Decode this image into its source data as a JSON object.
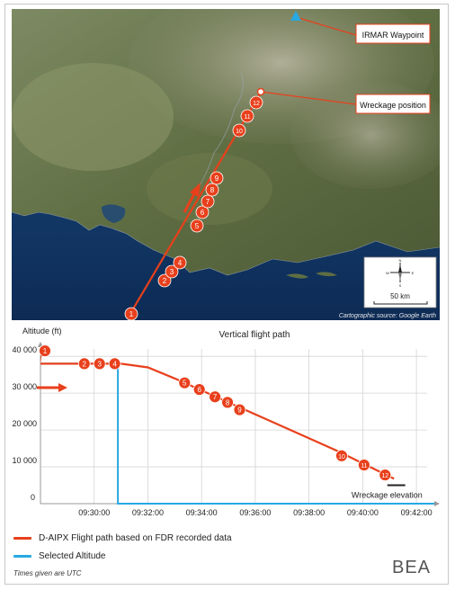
{
  "map": {
    "labels": {
      "waypoint": "IRMAR Waypoint",
      "wreckage": "Wreckage position"
    },
    "markers": [
      "1",
      "2",
      "3",
      "4",
      "5",
      "6",
      "7",
      "8",
      "9",
      "10",
      "11",
      "12"
    ],
    "scale_label": "50 km",
    "compass": {
      "n": "N",
      "s": "S",
      "e": "E",
      "w": "W"
    },
    "source": "Cartographic source: Google Earth",
    "colors": {
      "path": "#e8401c",
      "waypoint": "#27a9e1",
      "callout": "#e8401c"
    }
  },
  "chart_data": {
    "type": "line",
    "title": "Vertical flight path",
    "ylabel": "Altitude (ft)",
    "xlabel": "",
    "x_ticks": [
      "09:30:00",
      "09:32:00",
      "09:34:00",
      "09:36:00",
      "09:38:00",
      "09:40:00",
      "09:42:00"
    ],
    "y_ticks": [
      "0",
      "10 000",
      "20 000",
      "30 000",
      "40 000"
    ],
    "xlim": [
      "09:28:00",
      "09:42:40"
    ],
    "ylim": [
      0,
      42000
    ],
    "grid": true,
    "series": [
      {
        "name": "D-AIPX Flight path based on FDR recorded data",
        "color": "#e8401c",
        "points": [
          {
            "x": "09:28:00",
            "y": 38000
          },
          {
            "x": "09:31:00",
            "y": 38000
          },
          {
            "x": "09:32:00",
            "y": 37000
          },
          {
            "x": "09:33:00",
            "y": 34000
          },
          {
            "x": "09:35:00",
            "y": 27500
          },
          {
            "x": "09:37:00",
            "y": 21000
          },
          {
            "x": "09:39:00",
            "y": 14500
          },
          {
            "x": "09:41:10",
            "y": 6800
          }
        ]
      },
      {
        "name": "Selected Altitude",
        "color": "#27a9e1",
        "points": [
          {
            "x": "09:28:00",
            "y": 38000
          },
          {
            "x": "09:30:53",
            "y": 38000
          },
          {
            "x": "09:30:53",
            "y": 0
          },
          {
            "x": "09:42:40",
            "y": 0
          }
        ]
      }
    ],
    "markers": [
      {
        "label": "1",
        "x": "09:28:10",
        "y": 41500
      },
      {
        "label": "2",
        "x": "09:29:38",
        "y": 38000
      },
      {
        "label": "3",
        "x": "09:30:12",
        "y": 38000
      },
      {
        "label": "4",
        "x": "09:30:46",
        "y": 38000
      },
      {
        "label": "5",
        "x": "09:33:22",
        "y": 32800
      },
      {
        "label": "6",
        "x": "09:33:55",
        "y": 31000
      },
      {
        "label": "7",
        "x": "09:34:30",
        "y": 29000
      },
      {
        "label": "8",
        "x": "09:34:58",
        "y": 27500
      },
      {
        "label": "9",
        "x": "09:35:25",
        "y": 25500
      },
      {
        "label": "10",
        "x": "09:39:13",
        "y": 13000
      },
      {
        "label": "11",
        "x": "09:40:03",
        "y": 10500
      },
      {
        "label": "12",
        "x": "09:40:50",
        "y": 7800
      }
    ],
    "annotation": "Wreckage elevation",
    "wreckage_elevation_ft": 5000
  },
  "legend": [
    {
      "label": "D-AIPX Flight path based on FDR recorded data",
      "color": "#e8401c"
    },
    {
      "label": "Selected Altitude",
      "color": "#27a9e1"
    }
  ],
  "footer": {
    "note": "Times given are UTC",
    "logo": "BEA"
  }
}
